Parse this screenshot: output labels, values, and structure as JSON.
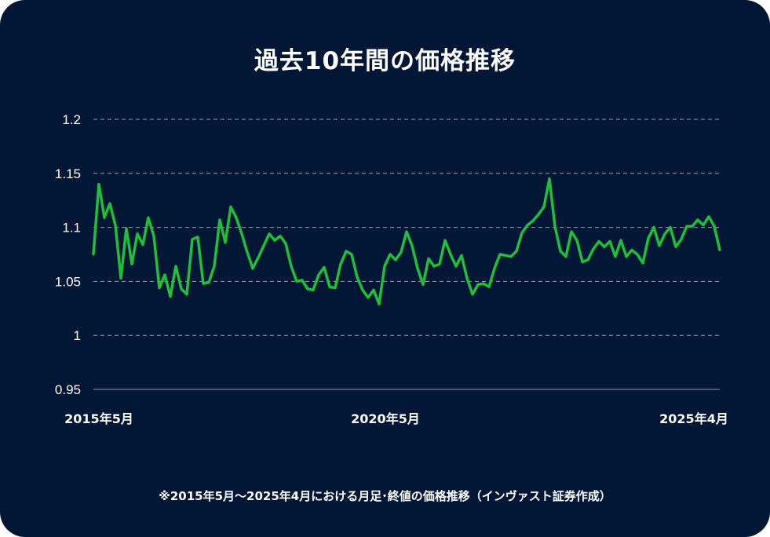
{
  "chart_data": {
    "type": "line",
    "title": "過去10年間の価格推移",
    "note": "※2015年5月～2025年4月における月足･終値の価格推移（インヴァスト証券作成）",
    "x_start": "2015年5月",
    "x_end": "2025年4月",
    "x_tick_labels": [
      "2015年5月",
      "2020年5月",
      "2025年4月"
    ],
    "y_tick_labels": [
      "1.2",
      "1.15",
      "1.1",
      "1.05",
      "1",
      "0.95"
    ],
    "y_ticks": [
      1.2,
      1.15,
      1.1,
      1.05,
      1.0,
      0.95
    ],
    "ylim": [
      0.95,
      1.2
    ],
    "grid": true,
    "line_color": "#1fbf3a",
    "values": [
      1.075,
      1.14,
      1.109,
      1.122,
      1.102,
      1.053,
      1.099,
      1.066,
      1.094,
      1.084,
      1.109,
      1.092,
      1.044,
      1.056,
      1.036,
      1.064,
      1.043,
      1.038,
      1.089,
      1.091,
      1.048,
      1.049,
      1.064,
      1.107,
      1.086,
      1.119,
      1.109,
      1.094,
      1.077,
      1.062,
      1.072,
      1.083,
      1.094,
      1.088,
      1.092,
      1.085,
      1.064,
      1.05,
      1.051,
      1.043,
      1.042,
      1.056,
      1.063,
      1.045,
      1.044,
      1.066,
      1.078,
      1.075,
      1.054,
      1.042,
      1.035,
      1.042,
      1.029,
      1.064,
      1.075,
      1.07,
      1.077,
      1.096,
      1.083,
      1.062,
      1.047,
      1.071,
      1.064,
      1.066,
      1.088,
      1.075,
      1.064,
      1.074,
      1.053,
      1.038,
      1.047,
      1.048,
      1.045,
      1.062,
      1.075,
      1.074,
      1.073,
      1.078,
      1.095,
      1.102,
      1.106,
      1.112,
      1.119,
      1.145,
      1.101,
      1.078,
      1.073,
      1.096,
      1.088,
      1.068,
      1.07,
      1.08,
      1.087,
      1.082,
      1.087,
      1.073,
      1.088,
      1.073,
      1.079,
      1.075,
      1.067,
      1.09,
      1.1,
      1.083,
      1.094,
      1.1,
      1.082,
      1.089,
      1.101,
      1.101,
      1.107,
      1.102,
      1.11,
      1.101,
      1.079
    ]
  }
}
